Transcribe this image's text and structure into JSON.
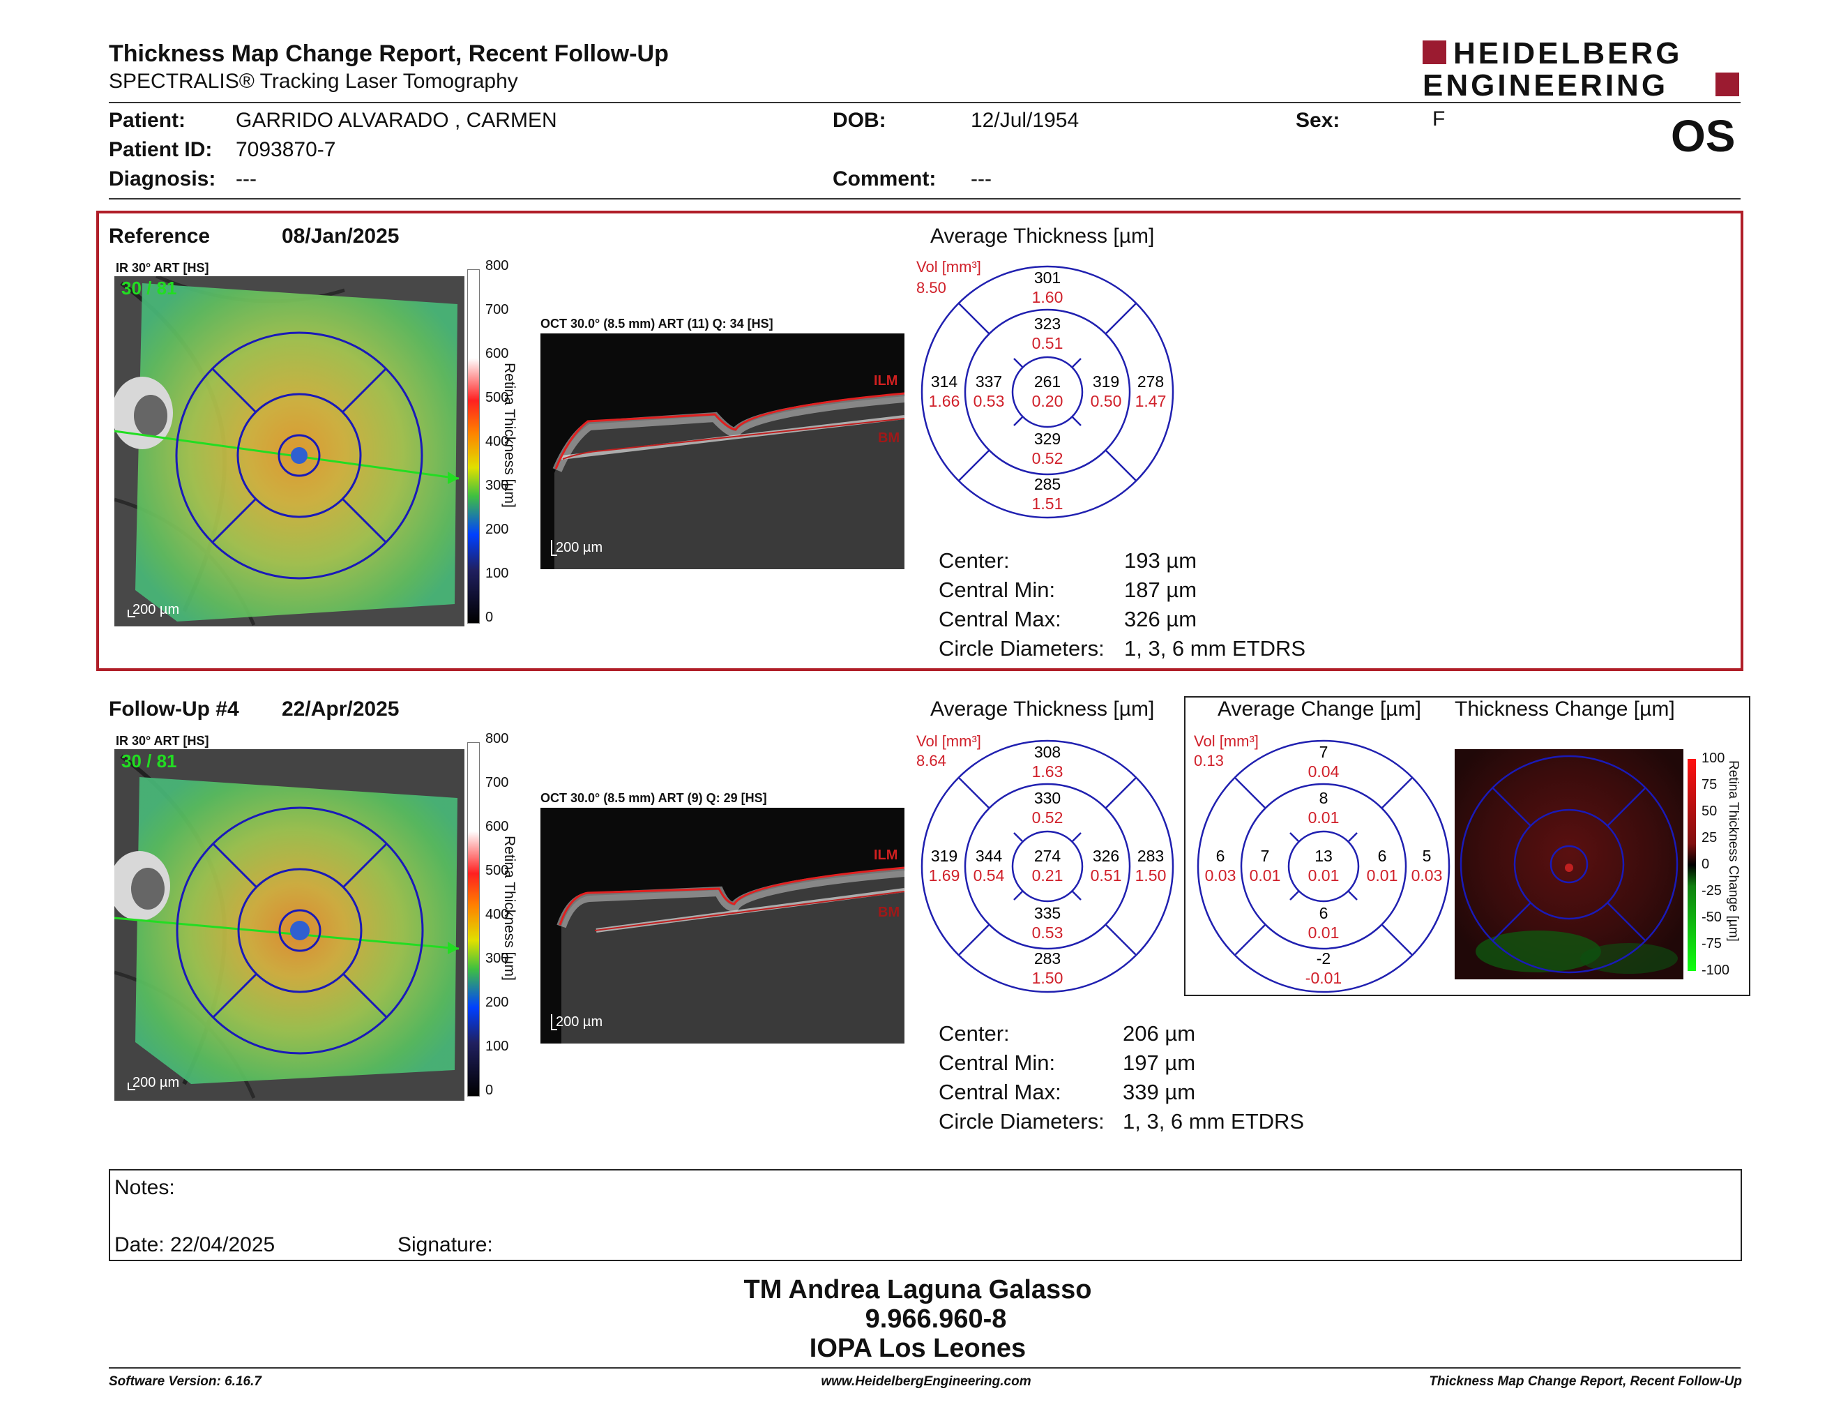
{
  "header": {
    "title": "Thickness Map Change Report, Recent Follow-Up",
    "subtitle": "SPECTRALIS® Tracking Laser Tomography",
    "logo_line1": "HEIDELBERG",
    "logo_line2": "ENGINEERING",
    "eye": "OS"
  },
  "patient": {
    "patient_label": "Patient:",
    "patient_value": "GARRIDO ALVARADO , CARMEN",
    "id_label": "Patient ID:",
    "id_value": "7093870-7",
    "diag_label": "Diagnosis:",
    "diag_value": "---",
    "dob_label": "DOB:",
    "dob_value": "12/Jul/1954",
    "comment_label": "Comment:",
    "comment_value": "---",
    "sex_label": "Sex:",
    "sex_value": "F"
  },
  "reference": {
    "label": "Reference",
    "date": "08/Jan/2025",
    "ir_label": "IR 30° ART [HS]",
    "ir_overlay": "30 / 81",
    "scale": "200 µm",
    "oct_label": "OCT 30.0° (8.5 mm) ART (11) Q: 34 [HS]",
    "oct_scale": "200 µm",
    "ilm": "ILM",
    "bm": "BM",
    "avg_title": "Average Thickness [µm]",
    "vol_label": "Vol [mm³]",
    "vol_value": "8.50",
    "etdrs": {
      "outer_top": [
        "301",
        "1.60"
      ],
      "inner_top": [
        "323",
        "0.51"
      ],
      "outer_left": [
        "314",
        "1.66"
      ],
      "inner_left": [
        "337",
        "0.53"
      ],
      "center": [
        "261",
        "0.20"
      ],
      "inner_right": [
        "319",
        "0.50"
      ],
      "outer_right": [
        "278",
        "1.47"
      ],
      "inner_bottom": [
        "329",
        "0.52"
      ],
      "outer_bottom": [
        "285",
        "1.51"
      ]
    },
    "stats": [
      {
        "label": "Center:",
        "value": "193 µm"
      },
      {
        "label": "Central Min:",
        "value": "187 µm"
      },
      {
        "label": "Central Max:",
        "value": "326 µm"
      },
      {
        "label": "Circle Diameters:",
        "value": "1, 3, 6 mm ETDRS"
      }
    ]
  },
  "followup": {
    "label": "Follow-Up #4",
    "date": "22/Apr/2025",
    "ir_label": "IR 30° ART [HS]",
    "ir_overlay": "30 / 81",
    "scale": "200 µm",
    "oct_label": "OCT 30.0° (8.5 mm) ART (9) Q: 29 [HS]",
    "oct_scale": "200 µm",
    "ilm": "ILM",
    "bm": "BM",
    "avg_title": "Average Thickness [µm]",
    "vol_label": "Vol [mm³]",
    "vol_value": "8.64",
    "etdrs": {
      "outer_top": [
        "308",
        "1.63"
      ],
      "inner_top": [
        "330",
        "0.52"
      ],
      "outer_left": [
        "319",
        "1.69"
      ],
      "inner_left": [
        "344",
        "0.54"
      ],
      "center": [
        "274",
        "0.21"
      ],
      "inner_right": [
        "326",
        "0.51"
      ],
      "outer_right": [
        "283",
        "1.50"
      ],
      "inner_bottom": [
        "335",
        "0.53"
      ],
      "outer_bottom": [
        "283",
        "1.50"
      ]
    },
    "stats": [
      {
        "label": "Center:",
        "value": "206 µm"
      },
      {
        "label": "Central Min:",
        "value": "197 µm"
      },
      {
        "label": "Central Max:",
        "value": "339 µm"
      },
      {
        "label": "Circle Diameters:",
        "value": "1, 3, 6 mm ETDRS"
      }
    ],
    "change_title": "Average Change [µm]",
    "change_vol_label": "Vol [mm³]",
    "change_vol_value": "0.13",
    "change_etdrs": {
      "outer_top": [
        "7",
        "0.04"
      ],
      "inner_top": [
        "8",
        "0.01"
      ],
      "outer_left": [
        "6",
        "0.03"
      ],
      "inner_left": [
        "7",
        "0.01"
      ],
      "center": [
        "13",
        "0.01"
      ],
      "inner_right": [
        "6",
        "0.01"
      ],
      "outer_right": [
        "5",
        "0.03"
      ],
      "inner_bottom": [
        "6",
        "0.01"
      ],
      "outer_bottom": [
        "-2",
        "-0.01"
      ]
    },
    "thickness_change_title": "Thickness Change [µm]"
  },
  "thickness_scale": {
    "ticks": [
      "800",
      "700",
      "600",
      "500",
      "400",
      "300",
      "200",
      "100",
      "0"
    ],
    "axis_label": "Retina Thickness [µm]"
  },
  "change_scale": {
    "ticks": [
      "100",
      "75",
      "50",
      "25",
      "0",
      "-25",
      "-50",
      "-75",
      "-100"
    ],
    "axis_label": "Retina Thickness Change [µm]"
  },
  "notes": {
    "notes_label": "Notes:",
    "date_label": "Date: 22/04/2025",
    "signature_label": "Signature:"
  },
  "signer": {
    "name": "TM Andrea Laguna Galasso",
    "rut": "9.966.960-8",
    "institution": "IOPA Los Leones"
  },
  "footer": {
    "software": "Software Version: 6.16.7",
    "website": "www.HeidelbergEngineering.com",
    "report": "Thickness Map Change Report, Recent Follow-Up"
  },
  "colors": {
    "frame_red": "#b01e28",
    "grid_blue": "#2020b0",
    "value_red": "#d0202a",
    "logo_red": "#9b1b30"
  }
}
